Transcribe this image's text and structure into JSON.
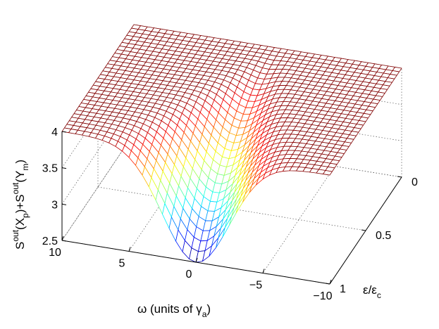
{
  "chart_data": {
    "type": "surface",
    "title": "",
    "x_axis": {
      "label_parts": [
        "ω (units of γ",
        "a",
        ")"
      ],
      "range": [
        -10,
        10
      ],
      "ticks": [
        {
          "value": 10,
          "label": "10"
        },
        {
          "value": 5,
          "label": "5"
        },
        {
          "value": 0,
          "label": "0"
        },
        {
          "value": -5,
          "label": "−5"
        },
        {
          "value": -10,
          "label": "−10"
        }
      ]
    },
    "y_axis": {
      "label_parts": [
        "ε/ε",
        "c"
      ],
      "range": [
        0,
        1
      ],
      "ticks": [
        {
          "value": 0,
          "label": "0"
        },
        {
          "value": 0.5,
          "label": "0.5"
        },
        {
          "value": 1,
          "label": "1"
        }
      ]
    },
    "z_axis": {
      "label_parts": [
        "S",
        "out",
        "(X",
        "p",
        ")+S",
        "out",
        "(Y",
        "m",
        ")"
      ],
      "range": [
        2.5,
        4
      ],
      "ticks": [
        {
          "value": 2.5,
          "label": "2.5"
        },
        {
          "value": 3,
          "label": "3"
        },
        {
          "value": 3.5,
          "label": "3.5"
        },
        {
          "value": 4,
          "label": "4"
        }
      ]
    },
    "surface": {
      "baseline": 4,
      "min_value": 2.5,
      "min_location": {
        "omega": 0,
        "epsilon": 1
      },
      "grid_omega": 41,
      "grid_epsilon": 31
    },
    "colormap": "jet",
    "grid": true,
    "box": true
  }
}
